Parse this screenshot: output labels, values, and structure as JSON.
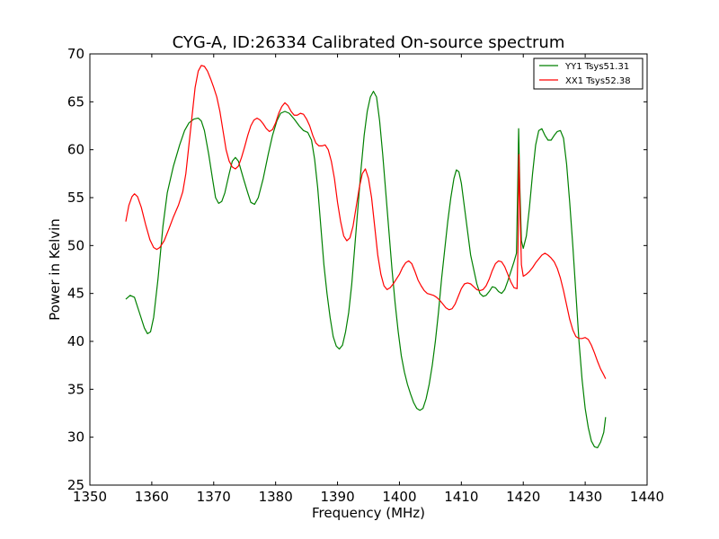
{
  "chart_data": {
    "type": "line",
    "title": "CYG-A, ID:26334 Calibrated On-source spectrum",
    "xlabel": "Frequency (MHz)",
    "ylabel": "Power in Kelvin",
    "xlim": [
      1350,
      1440
    ],
    "ylim": [
      25,
      70
    ],
    "xticks": [
      1350,
      1360,
      1370,
      1380,
      1390,
      1400,
      1410,
      1420,
      1430,
      1440
    ],
    "yticks": [
      25,
      30,
      35,
      40,
      45,
      50,
      55,
      60,
      65,
      70
    ],
    "grid": false,
    "legend_position": "top-right",
    "series": [
      {
        "name": "YY1 Tsys51.31",
        "color": "#008000",
        "points": [
          [
            1355.8,
            44.4
          ],
          [
            1356.5,
            44.8
          ],
          [
            1357.2,
            44.6
          ],
          [
            1358.0,
            43.0
          ],
          [
            1358.8,
            41.4
          ],
          [
            1359.3,
            40.8
          ],
          [
            1359.8,
            41.0
          ],
          [
            1360.3,
            42.5
          ],
          [
            1361.0,
            46.5
          ],
          [
            1361.8,
            52.0
          ],
          [
            1362.5,
            55.5
          ],
          [
            1363.5,
            58.3
          ],
          [
            1364.5,
            60.5
          ],
          [
            1365.3,
            62.0
          ],
          [
            1366.0,
            62.8
          ],
          [
            1366.8,
            63.2
          ],
          [
            1367.5,
            63.3
          ],
          [
            1368.0,
            63.0
          ],
          [
            1368.5,
            62.0
          ],
          [
            1369.2,
            59.5
          ],
          [
            1369.8,
            57.0
          ],
          [
            1370.3,
            55.0
          ],
          [
            1370.8,
            54.4
          ],
          [
            1371.3,
            54.6
          ],
          [
            1371.8,
            55.5
          ],
          [
            1372.5,
            57.5
          ],
          [
            1373.0,
            58.8
          ],
          [
            1373.5,
            59.2
          ],
          [
            1374.0,
            58.8
          ],
          [
            1374.8,
            57.0
          ],
          [
            1375.5,
            55.5
          ],
          [
            1376.0,
            54.5
          ],
          [
            1376.6,
            54.3
          ],
          [
            1377.2,
            55.0
          ],
          [
            1378.0,
            57.0
          ],
          [
            1378.8,
            59.5
          ],
          [
            1379.5,
            61.5
          ],
          [
            1380.2,
            63.0
          ],
          [
            1380.8,
            63.8
          ],
          [
            1381.5,
            64.0
          ],
          [
            1382.2,
            63.8
          ],
          [
            1383.0,
            63.2
          ],
          [
            1383.8,
            62.5
          ],
          [
            1384.5,
            62.0
          ],
          [
            1385.2,
            61.8
          ],
          [
            1385.8,
            61.0
          ],
          [
            1386.3,
            59.0
          ],
          [
            1386.8,
            56.0
          ],
          [
            1387.3,
            52.0
          ],
          [
            1387.8,
            48.0
          ],
          [
            1388.3,
            45.0
          ],
          [
            1388.8,
            42.5
          ],
          [
            1389.3,
            40.5
          ],
          [
            1389.8,
            39.5
          ],
          [
            1390.3,
            39.2
          ],
          [
            1390.8,
            39.6
          ],
          [
            1391.3,
            41.0
          ],
          [
            1391.8,
            43.0
          ],
          [
            1392.3,
            46.0
          ],
          [
            1392.8,
            50.0
          ],
          [
            1393.3,
            54.0
          ],
          [
            1393.8,
            58.0
          ],
          [
            1394.3,
            61.5
          ],
          [
            1394.8,
            64.0
          ],
          [
            1395.3,
            65.5
          ],
          [
            1395.8,
            66.1
          ],
          [
            1396.3,
            65.5
          ],
          [
            1396.8,
            63.0
          ],
          [
            1397.3,
            59.5
          ],
          [
            1397.8,
            55.5
          ],
          [
            1398.3,
            51.5
          ],
          [
            1398.8,
            47.5
          ],
          [
            1399.3,
            44.0
          ],
          [
            1399.8,
            41.0
          ],
          [
            1400.3,
            38.5
          ],
          [
            1400.8,
            36.8
          ],
          [
            1401.3,
            35.5
          ],
          [
            1401.8,
            34.5
          ],
          [
            1402.3,
            33.6
          ],
          [
            1402.8,
            33.0
          ],
          [
            1403.3,
            32.8
          ],
          [
            1403.8,
            33.0
          ],
          [
            1404.3,
            34.0
          ],
          [
            1404.8,
            35.5
          ],
          [
            1405.3,
            37.5
          ],
          [
            1405.8,
            40.0
          ],
          [
            1406.3,
            43.0
          ],
          [
            1406.8,
            46.5
          ],
          [
            1407.3,
            49.5
          ],
          [
            1407.8,
            52.5
          ],
          [
            1408.3,
            55.0
          ],
          [
            1408.8,
            57.0
          ],
          [
            1409.2,
            57.9
          ],
          [
            1409.6,
            57.7
          ],
          [
            1410.0,
            56.5
          ],
          [
            1410.5,
            54.0
          ],
          [
            1411.0,
            51.5
          ],
          [
            1411.5,
            49.0
          ],
          [
            1412.0,
            47.5
          ],
          [
            1412.5,
            46.0
          ],
          [
            1413.0,
            45.0
          ],
          [
            1413.5,
            44.7
          ],
          [
            1414.0,
            44.8
          ],
          [
            1414.5,
            45.2
          ],
          [
            1415.0,
            45.7
          ],
          [
            1415.5,
            45.6
          ],
          [
            1416.0,
            45.2
          ],
          [
            1416.5,
            45.0
          ],
          [
            1417.0,
            45.4
          ],
          [
            1417.5,
            46.3
          ],
          [
            1418.0,
            47.3
          ],
          [
            1418.5,
            48.3
          ],
          [
            1418.9,
            49.2
          ],
          [
            1419.1,
            56.0
          ],
          [
            1419.25,
            62.2
          ],
          [
            1419.45,
            56.0
          ],
          [
            1419.7,
            50.5
          ],
          [
            1420.0,
            49.7
          ],
          [
            1420.5,
            51.0
          ],
          [
            1421.0,
            54.0
          ],
          [
            1421.5,
            57.5
          ],
          [
            1422.0,
            60.5
          ],
          [
            1422.5,
            62.0
          ],
          [
            1423.0,
            62.2
          ],
          [
            1423.5,
            61.5
          ],
          [
            1424.0,
            61.0
          ],
          [
            1424.5,
            61.0
          ],
          [
            1425.0,
            61.5
          ],
          [
            1425.5,
            61.9
          ],
          [
            1426.0,
            62.0
          ],
          [
            1426.5,
            61.2
          ],
          [
            1427.0,
            58.5
          ],
          [
            1427.5,
            54.5
          ],
          [
            1428.0,
            50.0
          ],
          [
            1428.5,
            45.0
          ],
          [
            1429.0,
            40.0
          ],
          [
            1429.5,
            36.0
          ],
          [
            1430.0,
            33.0
          ],
          [
            1430.5,
            31.0
          ],
          [
            1431.0,
            29.6
          ],
          [
            1431.5,
            29.0
          ],
          [
            1432.0,
            28.9
          ],
          [
            1432.5,
            29.5
          ],
          [
            1433.0,
            30.5
          ],
          [
            1433.3,
            32.1
          ]
        ]
      },
      {
        "name": "XX1 Tsys52.38",
        "color": "#ff0000",
        "points": [
          [
            1355.8,
            52.5
          ],
          [
            1356.3,
            54.2
          ],
          [
            1356.8,
            55.1
          ],
          [
            1357.2,
            55.4
          ],
          [
            1357.7,
            55.1
          ],
          [
            1358.3,
            54.0
          ],
          [
            1359.0,
            52.2
          ],
          [
            1359.7,
            50.6
          ],
          [
            1360.3,
            49.8
          ],
          [
            1360.8,
            49.6
          ],
          [
            1361.3,
            49.8
          ],
          [
            1362.0,
            50.5
          ],
          [
            1362.8,
            51.8
          ],
          [
            1363.5,
            53.0
          ],
          [
            1364.3,
            54.2
          ],
          [
            1365.0,
            55.6
          ],
          [
            1365.5,
            57.5
          ],
          [
            1366.0,
            60.5
          ],
          [
            1366.5,
            63.5
          ],
          [
            1367.0,
            66.5
          ],
          [
            1367.5,
            68.2
          ],
          [
            1368.0,
            68.8
          ],
          [
            1368.5,
            68.7
          ],
          [
            1369.0,
            68.2
          ],
          [
            1369.5,
            67.4
          ],
          [
            1370.0,
            66.5
          ],
          [
            1370.5,
            65.5
          ],
          [
            1371.0,
            64.0
          ],
          [
            1371.5,
            62.0
          ],
          [
            1372.0,
            60.0
          ],
          [
            1372.5,
            58.8
          ],
          [
            1373.0,
            58.2
          ],
          [
            1373.5,
            58.0
          ],
          [
            1374.0,
            58.3
          ],
          [
            1374.5,
            59.2
          ],
          [
            1375.0,
            60.3
          ],
          [
            1375.5,
            61.5
          ],
          [
            1376.0,
            62.5
          ],
          [
            1376.5,
            63.1
          ],
          [
            1377.0,
            63.3
          ],
          [
            1377.5,
            63.1
          ],
          [
            1378.0,
            62.7
          ],
          [
            1378.5,
            62.2
          ],
          [
            1379.0,
            61.9
          ],
          [
            1379.5,
            62.1
          ],
          [
            1380.0,
            62.8
          ],
          [
            1380.5,
            63.8
          ],
          [
            1381.0,
            64.5
          ],
          [
            1381.5,
            64.9
          ],
          [
            1382.0,
            64.6
          ],
          [
            1382.5,
            64.0
          ],
          [
            1383.0,
            63.6
          ],
          [
            1383.5,
            63.6
          ],
          [
            1384.0,
            63.8
          ],
          [
            1384.5,
            63.7
          ],
          [
            1385.0,
            63.2
          ],
          [
            1385.5,
            62.5
          ],
          [
            1386.0,
            61.5
          ],
          [
            1386.5,
            60.7
          ],
          [
            1387.0,
            60.4
          ],
          [
            1387.5,
            60.4
          ],
          [
            1388.0,
            60.5
          ],
          [
            1388.5,
            60.0
          ],
          [
            1389.0,
            58.8
          ],
          [
            1389.5,
            57.0
          ],
          [
            1390.0,
            54.5
          ],
          [
            1390.5,
            52.5
          ],
          [
            1391.0,
            51.0
          ],
          [
            1391.5,
            50.5
          ],
          [
            1392.0,
            50.8
          ],
          [
            1392.5,
            52.0
          ],
          [
            1393.0,
            54.0
          ],
          [
            1393.5,
            56.0
          ],
          [
            1394.0,
            57.5
          ],
          [
            1394.5,
            58.0
          ],
          [
            1395.0,
            57.0
          ],
          [
            1395.5,
            55.0
          ],
          [
            1396.0,
            52.0
          ],
          [
            1396.5,
            49.0
          ],
          [
            1397.0,
            47.0
          ],
          [
            1397.5,
            45.8
          ],
          [
            1398.0,
            45.4
          ],
          [
            1398.5,
            45.6
          ],
          [
            1399.0,
            46.0
          ],
          [
            1399.5,
            46.5
          ],
          [
            1400.0,
            47.0
          ],
          [
            1400.5,
            47.7
          ],
          [
            1401.0,
            48.2
          ],
          [
            1401.5,
            48.4
          ],
          [
            1402.0,
            48.1
          ],
          [
            1402.5,
            47.3
          ],
          [
            1403.0,
            46.4
          ],
          [
            1403.5,
            45.8
          ],
          [
            1404.0,
            45.3
          ],
          [
            1404.5,
            45.0
          ],
          [
            1405.0,
            44.9
          ],
          [
            1405.5,
            44.8
          ],
          [
            1406.0,
            44.6
          ],
          [
            1406.5,
            44.3
          ],
          [
            1407.0,
            43.9
          ],
          [
            1407.5,
            43.5
          ],
          [
            1408.0,
            43.3
          ],
          [
            1408.5,
            43.4
          ],
          [
            1409.0,
            43.9
          ],
          [
            1409.5,
            44.7
          ],
          [
            1410.0,
            45.5
          ],
          [
            1410.5,
            46.0
          ],
          [
            1411.0,
            46.1
          ],
          [
            1411.5,
            46.0
          ],
          [
            1412.0,
            45.7
          ],
          [
            1412.5,
            45.4
          ],
          [
            1413.0,
            45.3
          ],
          [
            1413.5,
            45.4
          ],
          [
            1414.0,
            45.8
          ],
          [
            1414.5,
            46.5
          ],
          [
            1415.0,
            47.4
          ],
          [
            1415.5,
            48.1
          ],
          [
            1416.0,
            48.4
          ],
          [
            1416.5,
            48.3
          ],
          [
            1417.0,
            47.8
          ],
          [
            1417.5,
            47.0
          ],
          [
            1418.0,
            46.2
          ],
          [
            1418.5,
            45.6
          ],
          [
            1419.0,
            45.5
          ],
          [
            1419.15,
            50.0
          ],
          [
            1419.3,
            59.5
          ],
          [
            1419.5,
            53.0
          ],
          [
            1419.7,
            48.0
          ],
          [
            1420.0,
            46.8
          ],
          [
            1420.5,
            47.0
          ],
          [
            1421.0,
            47.3
          ],
          [
            1421.5,
            47.7
          ],
          [
            1422.0,
            48.2
          ],
          [
            1422.5,
            48.6
          ],
          [
            1423.0,
            49.0
          ],
          [
            1423.5,
            49.2
          ],
          [
            1424.0,
            49.0
          ],
          [
            1424.5,
            48.7
          ],
          [
            1425.0,
            48.3
          ],
          [
            1425.5,
            47.6
          ],
          [
            1426.0,
            46.6
          ],
          [
            1426.5,
            45.3
          ],
          [
            1427.0,
            43.8
          ],
          [
            1427.5,
            42.3
          ],
          [
            1428.0,
            41.2
          ],
          [
            1428.5,
            40.5
          ],
          [
            1429.0,
            40.3
          ],
          [
            1429.5,
            40.3
          ],
          [
            1430.0,
            40.4
          ],
          [
            1430.5,
            40.2
          ],
          [
            1431.0,
            39.6
          ],
          [
            1431.5,
            38.8
          ],
          [
            1432.0,
            37.9
          ],
          [
            1432.5,
            37.1
          ],
          [
            1433.0,
            36.5
          ],
          [
            1433.3,
            36.1
          ]
        ]
      }
    ]
  }
}
